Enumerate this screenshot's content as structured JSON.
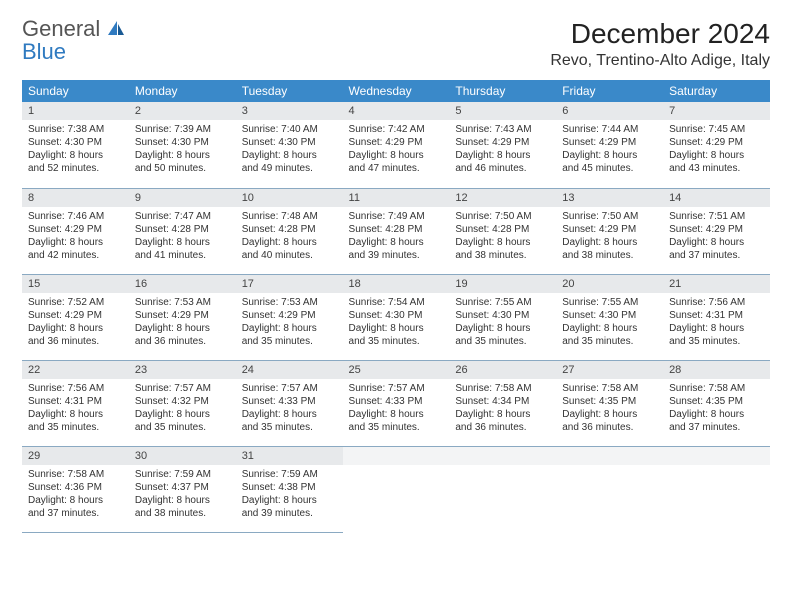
{
  "brand": {
    "part1": "General",
    "part2": "Blue"
  },
  "title": "December 2024",
  "location": "Revo, Trentino-Alto Adige, Italy",
  "colors": {
    "header_bg": "#3a89c9",
    "header_text": "#ffffff",
    "daynum_bg": "#e7e9eb",
    "border": "#8aa9c2",
    "brand_gray": "#555555",
    "brand_blue": "#2f7ac0"
  },
  "day_headers": [
    "Sunday",
    "Monday",
    "Tuesday",
    "Wednesday",
    "Thursday",
    "Friday",
    "Saturday"
  ],
  "weeks": [
    [
      {
        "n": "1",
        "sr": "Sunrise: 7:38 AM",
        "ss": "Sunset: 4:30 PM",
        "dl1": "Daylight: 8 hours",
        "dl2": "and 52 minutes."
      },
      {
        "n": "2",
        "sr": "Sunrise: 7:39 AM",
        "ss": "Sunset: 4:30 PM",
        "dl1": "Daylight: 8 hours",
        "dl2": "and 50 minutes."
      },
      {
        "n": "3",
        "sr": "Sunrise: 7:40 AM",
        "ss": "Sunset: 4:30 PM",
        "dl1": "Daylight: 8 hours",
        "dl2": "and 49 minutes."
      },
      {
        "n": "4",
        "sr": "Sunrise: 7:42 AM",
        "ss": "Sunset: 4:29 PM",
        "dl1": "Daylight: 8 hours",
        "dl2": "and 47 minutes."
      },
      {
        "n": "5",
        "sr": "Sunrise: 7:43 AM",
        "ss": "Sunset: 4:29 PM",
        "dl1": "Daylight: 8 hours",
        "dl2": "and 46 minutes."
      },
      {
        "n": "6",
        "sr": "Sunrise: 7:44 AM",
        "ss": "Sunset: 4:29 PM",
        "dl1": "Daylight: 8 hours",
        "dl2": "and 45 minutes."
      },
      {
        "n": "7",
        "sr": "Sunrise: 7:45 AM",
        "ss": "Sunset: 4:29 PM",
        "dl1": "Daylight: 8 hours",
        "dl2": "and 43 minutes."
      }
    ],
    [
      {
        "n": "8",
        "sr": "Sunrise: 7:46 AM",
        "ss": "Sunset: 4:29 PM",
        "dl1": "Daylight: 8 hours",
        "dl2": "and 42 minutes."
      },
      {
        "n": "9",
        "sr": "Sunrise: 7:47 AM",
        "ss": "Sunset: 4:28 PM",
        "dl1": "Daylight: 8 hours",
        "dl2": "and 41 minutes."
      },
      {
        "n": "10",
        "sr": "Sunrise: 7:48 AM",
        "ss": "Sunset: 4:28 PM",
        "dl1": "Daylight: 8 hours",
        "dl2": "and 40 minutes."
      },
      {
        "n": "11",
        "sr": "Sunrise: 7:49 AM",
        "ss": "Sunset: 4:28 PM",
        "dl1": "Daylight: 8 hours",
        "dl2": "and 39 minutes."
      },
      {
        "n": "12",
        "sr": "Sunrise: 7:50 AM",
        "ss": "Sunset: 4:28 PM",
        "dl1": "Daylight: 8 hours",
        "dl2": "and 38 minutes."
      },
      {
        "n": "13",
        "sr": "Sunrise: 7:50 AM",
        "ss": "Sunset: 4:29 PM",
        "dl1": "Daylight: 8 hours",
        "dl2": "and 38 minutes."
      },
      {
        "n": "14",
        "sr": "Sunrise: 7:51 AM",
        "ss": "Sunset: 4:29 PM",
        "dl1": "Daylight: 8 hours",
        "dl2": "and 37 minutes."
      }
    ],
    [
      {
        "n": "15",
        "sr": "Sunrise: 7:52 AM",
        "ss": "Sunset: 4:29 PM",
        "dl1": "Daylight: 8 hours",
        "dl2": "and 36 minutes."
      },
      {
        "n": "16",
        "sr": "Sunrise: 7:53 AM",
        "ss": "Sunset: 4:29 PM",
        "dl1": "Daylight: 8 hours",
        "dl2": "and 36 minutes."
      },
      {
        "n": "17",
        "sr": "Sunrise: 7:53 AM",
        "ss": "Sunset: 4:29 PM",
        "dl1": "Daylight: 8 hours",
        "dl2": "and 35 minutes."
      },
      {
        "n": "18",
        "sr": "Sunrise: 7:54 AM",
        "ss": "Sunset: 4:30 PM",
        "dl1": "Daylight: 8 hours",
        "dl2": "and 35 minutes."
      },
      {
        "n": "19",
        "sr": "Sunrise: 7:55 AM",
        "ss": "Sunset: 4:30 PM",
        "dl1": "Daylight: 8 hours",
        "dl2": "and 35 minutes."
      },
      {
        "n": "20",
        "sr": "Sunrise: 7:55 AM",
        "ss": "Sunset: 4:30 PM",
        "dl1": "Daylight: 8 hours",
        "dl2": "and 35 minutes."
      },
      {
        "n": "21",
        "sr": "Sunrise: 7:56 AM",
        "ss": "Sunset: 4:31 PM",
        "dl1": "Daylight: 8 hours",
        "dl2": "and 35 minutes."
      }
    ],
    [
      {
        "n": "22",
        "sr": "Sunrise: 7:56 AM",
        "ss": "Sunset: 4:31 PM",
        "dl1": "Daylight: 8 hours",
        "dl2": "and 35 minutes."
      },
      {
        "n": "23",
        "sr": "Sunrise: 7:57 AM",
        "ss": "Sunset: 4:32 PM",
        "dl1": "Daylight: 8 hours",
        "dl2": "and 35 minutes."
      },
      {
        "n": "24",
        "sr": "Sunrise: 7:57 AM",
        "ss": "Sunset: 4:33 PM",
        "dl1": "Daylight: 8 hours",
        "dl2": "and 35 minutes."
      },
      {
        "n": "25",
        "sr": "Sunrise: 7:57 AM",
        "ss": "Sunset: 4:33 PM",
        "dl1": "Daylight: 8 hours",
        "dl2": "and 35 minutes."
      },
      {
        "n": "26",
        "sr": "Sunrise: 7:58 AM",
        "ss": "Sunset: 4:34 PM",
        "dl1": "Daylight: 8 hours",
        "dl2": "and 36 minutes."
      },
      {
        "n": "27",
        "sr": "Sunrise: 7:58 AM",
        "ss": "Sunset: 4:35 PM",
        "dl1": "Daylight: 8 hours",
        "dl2": "and 36 minutes."
      },
      {
        "n": "28",
        "sr": "Sunrise: 7:58 AM",
        "ss": "Sunset: 4:35 PM",
        "dl1": "Daylight: 8 hours",
        "dl2": "and 37 minutes."
      }
    ],
    [
      {
        "n": "29",
        "sr": "Sunrise: 7:58 AM",
        "ss": "Sunset: 4:36 PM",
        "dl1": "Daylight: 8 hours",
        "dl2": "and 37 minutes."
      },
      {
        "n": "30",
        "sr": "Sunrise: 7:59 AM",
        "ss": "Sunset: 4:37 PM",
        "dl1": "Daylight: 8 hours",
        "dl2": "and 38 minutes."
      },
      {
        "n": "31",
        "sr": "Sunrise: 7:59 AM",
        "ss": "Sunset: 4:38 PM",
        "dl1": "Daylight: 8 hours",
        "dl2": "and 39 minutes."
      },
      null,
      null,
      null,
      null
    ]
  ]
}
